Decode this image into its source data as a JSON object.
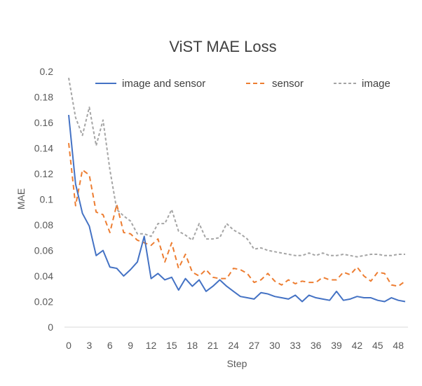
{
  "chart_data": {
    "type": "line",
    "title": "ViST MAE Loss",
    "xlabel": "Step",
    "ylabel": "MAE",
    "xlim": [
      0,
      49
    ],
    "ylim": [
      0,
      0.2
    ],
    "y_ticks": [
      "0",
      "0.02",
      "0.04",
      "0.06",
      "0.08",
      "0.1",
      "0.12",
      "0.14",
      "0.16",
      "0.18",
      "0.2"
    ],
    "x_ticks": [
      "0",
      "3",
      "6",
      "9",
      "12",
      "15",
      "18",
      "21",
      "24",
      "27",
      "30",
      "33",
      "36",
      "39",
      "42",
      "45",
      "48"
    ],
    "grid": false,
    "legend_position": "top",
    "x": [
      0,
      1,
      2,
      3,
      4,
      5,
      6,
      7,
      8,
      9,
      10,
      11,
      12,
      13,
      14,
      15,
      16,
      17,
      18,
      19,
      20,
      21,
      22,
      23,
      24,
      25,
      26,
      27,
      28,
      29,
      30,
      31,
      32,
      33,
      34,
      35,
      36,
      37,
      38,
      39,
      40,
      41,
      42,
      43,
      44,
      45,
      46,
      47,
      48,
      49
    ],
    "series": [
      {
        "name": "image and sensor",
        "color": "#4472C4",
        "dash": "solid",
        "values": [
          0.166,
          0.112,
          0.089,
          0.079,
          0.056,
          0.06,
          0.047,
          0.046,
          0.04,
          0.045,
          0.051,
          0.071,
          0.038,
          0.042,
          0.037,
          0.039,
          0.029,
          0.038,
          0.032,
          0.037,
          0.028,
          0.032,
          0.037,
          0.032,
          0.028,
          0.024,
          0.023,
          0.022,
          0.027,
          0.026,
          0.024,
          0.023,
          0.022,
          0.025,
          0.02,
          0.025,
          0.023,
          0.022,
          0.021,
          0.028,
          0.021,
          0.022,
          0.024,
          0.023,
          0.023,
          0.021,
          0.02,
          0.023,
          0.021,
          0.02
        ]
      },
      {
        "name": "sensor",
        "color": "#ED7D31",
        "dash": "dashed",
        "values": [
          0.144,
          0.095,
          0.123,
          0.119,
          0.09,
          0.088,
          0.074,
          0.096,
          0.074,
          0.073,
          0.068,
          0.066,
          0.064,
          0.069,
          0.051,
          0.066,
          0.046,
          0.057,
          0.043,
          0.04,
          0.045,
          0.039,
          0.038,
          0.038,
          0.046,
          0.045,
          0.042,
          0.035,
          0.037,
          0.042,
          0.036,
          0.033,
          0.037,
          0.034,
          0.036,
          0.035,
          0.035,
          0.039,
          0.037,
          0.037,
          0.043,
          0.041,
          0.047,
          0.04,
          0.036,
          0.043,
          0.042,
          0.033,
          0.032,
          0.036
        ]
      },
      {
        "name": "image",
        "color": "#A5A5A5",
        "dash": "dashed",
        "values": [
          0.195,
          0.164,
          0.15,
          0.172,
          0.142,
          0.162,
          0.123,
          0.092,
          0.087,
          0.083,
          0.073,
          0.073,
          0.071,
          0.081,
          0.081,
          0.092,
          0.075,
          0.072,
          0.068,
          0.081,
          0.069,
          0.069,
          0.07,
          0.081,
          0.076,
          0.073,
          0.069,
          0.061,
          0.062,
          0.06,
          0.059,
          0.058,
          0.057,
          0.056,
          0.056,
          0.058,
          0.056,
          0.058,
          0.056,
          0.056,
          0.057,
          0.056,
          0.055,
          0.056,
          0.057,
          0.057,
          0.056,
          0.056,
          0.057,
          0.057
        ]
      }
    ]
  }
}
